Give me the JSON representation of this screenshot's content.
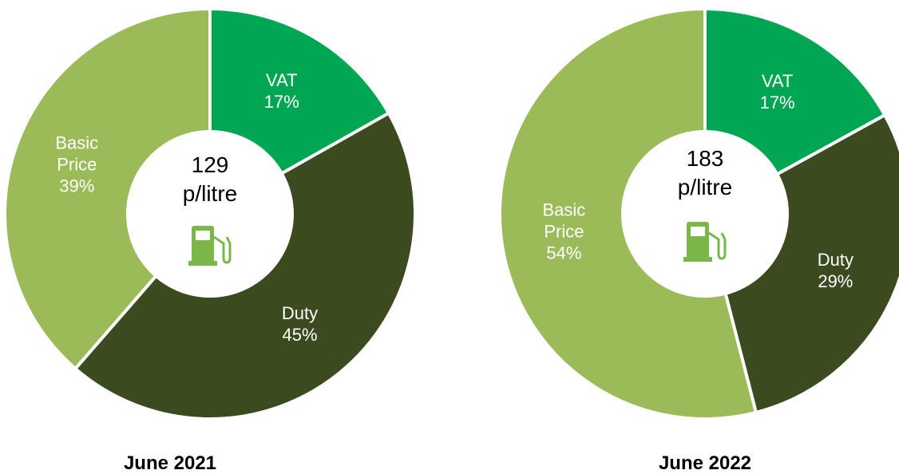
{
  "chart_data": [
    {
      "type": "pie",
      "title": "June 2021",
      "center_value": 129,
      "center_unit": "p/litre",
      "categories": [
        "VAT",
        "Duty",
        "Basic Price"
      ],
      "values": [
        17,
        45,
        39
      ],
      "value_labels": [
        "17%",
        "45%",
        "39%"
      ],
      "colors": [
        "#00a651",
        "#3b4a1f",
        "#9bbb59"
      ]
    },
    {
      "type": "pie",
      "title": "June 2022",
      "center_value": 183,
      "center_unit": "p/litre",
      "categories": [
        "VAT",
        "Duty",
        "Basic Price"
      ],
      "values": [
        17,
        29,
        54
      ],
      "value_labels": [
        "17%",
        "29%",
        "54%"
      ],
      "colors": [
        "#00a651",
        "#3b4a1f",
        "#9bbb59"
      ]
    }
  ]
}
